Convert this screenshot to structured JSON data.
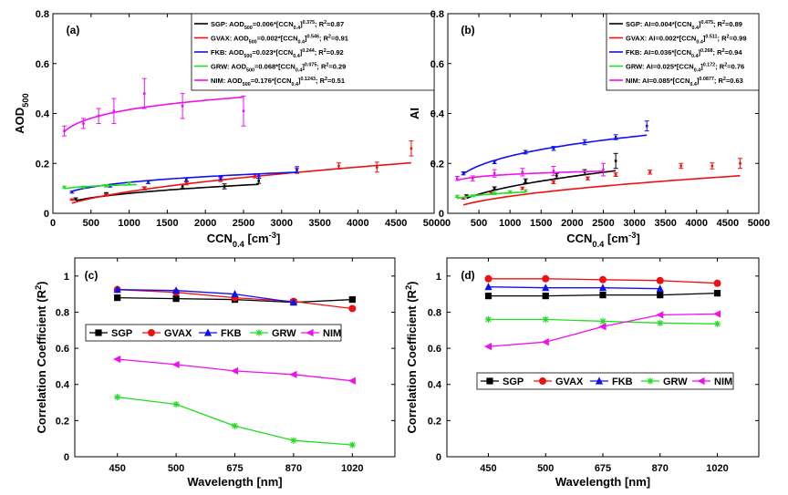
{
  "colors": {
    "SGP": "#000000",
    "GVAX": "#ee1111",
    "FKB": "#1111ee",
    "GRW": "#22dd22",
    "NIM": "#ee11ee"
  },
  "chart_data": [
    {
      "id": "a",
      "type": "scatter",
      "panel_label": "(a)",
      "ylabel": "AOD_500",
      "xlabel": "CCN_0.4 [cm^-3]",
      "xlim": [
        0,
        5000
      ],
      "ylim": [
        0,
        0.8
      ],
      "xticks": [
        0,
        500,
        1000,
        1500,
        2000,
        2500,
        3000,
        3500,
        4000,
        4500,
        5000
      ],
      "yticks": [
        0,
        0.2,
        0.4,
        0.6,
        0.8
      ],
      "ytick_labels": [
        "0",
        "0.2",
        "0.4",
        "0.6",
        "0.8"
      ],
      "legend": [
        "SGP: AOD500=0.006*[CCN0.4]^0.375; R2=0.87",
        "GVAX: AOD500=0.002*[CCN0.4]^0.546; R2=0.91",
        "FKB: AOD500=0.023*[CCN0.4]^0.244; R2=0.92",
        "GRW: AOD500=0.068*[CCN0.4]^0.075; R2=0.29",
        "NIM: AOD500=0.176*[CCN0.4]^0.1243; R2=0.51"
      ],
      "series": [
        {
          "key": "SGP",
          "x": [
            300,
            700,
            1200,
            1700,
            2250,
            2700
          ],
          "y": [
            0.058,
            0.078,
            0.1,
            0.108,
            0.108,
            0.13
          ],
          "err": [
            0.004,
            0.005,
            0.006,
            0.008,
            0.01,
            0.01
          ],
          "fit": {
            "a": 0.006,
            "b": 0.375,
            "x0": 300,
            "x1": 2700
          }
        },
        {
          "key": "GVAX",
          "x": [
            250,
            700,
            1200,
            1750,
            2200,
            2650,
            3200,
            3750,
            4250,
            4700
          ],
          "y": [
            0.055,
            0.075,
            0.1,
            0.12,
            0.135,
            0.15,
            0.17,
            0.19,
            0.185,
            0.26
          ],
          "err": [
            0.003,
            0.004,
            0.005,
            0.006,
            0.008,
            0.008,
            0.01,
            0.012,
            0.02,
            0.03
          ],
          "fit": {
            "a": 0.002,
            "b": 0.546,
            "x0": 250,
            "x1": 4700
          }
        },
        {
          "key": "FKB",
          "x": [
            250,
            750,
            1250,
            1750,
            2200,
            2700,
            3200
          ],
          "y": [
            0.085,
            0.11,
            0.125,
            0.135,
            0.14,
            0.15,
            0.175
          ],
          "err": [
            0.004,
            0.005,
            0.006,
            0.006,
            0.007,
            0.008,
            0.012
          ],
          "fit": {
            "a": 0.023,
            "b": 0.244,
            "x0": 250,
            "x1": 3200
          }
        },
        {
          "key": "GRW",
          "x": [
            150,
            400,
            700,
            1000
          ],
          "y": [
            0.105,
            0.105,
            0.11,
            0.12
          ],
          "err": [
            0.004,
            0.004,
            0.005,
            0.005
          ],
          "fit": {
            "a": 0.068,
            "b": 0.075,
            "x0": 150,
            "x1": 1100
          }
        },
        {
          "key": "NIM",
          "x": [
            150,
            400,
            600,
            800,
            1200,
            1700,
            2500
          ],
          "y": [
            0.33,
            0.36,
            0.39,
            0.41,
            0.48,
            0.43,
            0.41
          ],
          "err": [
            0.02,
            0.02,
            0.03,
            0.05,
            0.06,
            0.05,
            0.06
          ],
          "fit": {
            "a": 0.176,
            "b": 0.1243,
            "x0": 150,
            "x1": 2500
          }
        }
      ]
    },
    {
      "id": "b",
      "type": "scatter",
      "panel_label": "(b)",
      "ylabel": "AI",
      "xlabel": "CCN_0.4 [cm^-3]",
      "xlim": [
        0,
        5000
      ],
      "ylim": [
        0,
        0.8
      ],
      "xticks": [
        0,
        500,
        1000,
        1500,
        2000,
        2500,
        3000,
        3500,
        4000,
        4500,
        5000
      ],
      "yticks": [
        0,
        0.2,
        0.4,
        0.6,
        0.8
      ],
      "ytick_labels": [
        "0",
        "0.2",
        "0.4",
        "0.6",
        "0.8"
      ],
      "legend": [
        "SGP: AI=0.004*[CCN0.4]^0.475; R2=0.89",
        "GVAX: AI=0.002*[CCN0.4]^0.511; R2=0.99",
        "FKB: AI=0.036*[CCN0.4]^0.268; R2=0.94",
        "GRW: AI=0.025*[CCN0.4]^0.172; R2=0.76",
        "NIM: AI=0.085*[CCN0.4]^0.0877; R2=0.63"
      ],
      "series": [
        {
          "key": "SGP",
          "x": [
            300,
            750,
            1250,
            1750,
            2200,
            2700
          ],
          "y": [
            0.07,
            0.1,
            0.13,
            0.15,
            0.165,
            0.21
          ],
          "err": [
            0.004,
            0.006,
            0.008,
            0.01,
            0.01,
            0.03
          ],
          "fit": {
            "a": 0.004,
            "b": 0.475,
            "x0": 300,
            "x1": 2700
          }
        },
        {
          "key": "GVAX",
          "x": [
            250,
            700,
            1200,
            1700,
            2250,
            2700,
            3250,
            3750,
            4250,
            4700
          ],
          "y": [
            0.06,
            0.08,
            0.1,
            0.125,
            0.14,
            0.155,
            0.165,
            0.19,
            0.19,
            0.2
          ],
          "err": [
            0.003,
            0.004,
            0.005,
            0.006,
            0.006,
            0.007,
            0.008,
            0.01,
            0.012,
            0.02
          ],
          "fit": {
            "a": 0.002,
            "b": 0.511,
            "x0": 250,
            "x1": 4700
          }
        },
        {
          "key": "FKB",
          "x": [
            250,
            750,
            1250,
            1700,
            2200,
            2700,
            3200
          ],
          "y": [
            0.16,
            0.205,
            0.245,
            0.26,
            0.285,
            0.305,
            0.35
          ],
          "err": [
            0.006,
            0.006,
            0.007,
            0.008,
            0.01,
            0.01,
            0.02
          ],
          "fit": {
            "a": 0.036,
            "b": 0.268,
            "x0": 250,
            "x1": 3200
          }
        },
        {
          "key": "GRW",
          "x": [
            150,
            400,
            750,
            1000,
            1250
          ],
          "y": [
            0.068,
            0.07,
            0.08,
            0.085,
            0.09
          ],
          "err": [
            0.004,
            0.004,
            0.005,
            0.005,
            0.005
          ],
          "fit": {
            "a": 0.025,
            "b": 0.172,
            "x0": 150,
            "x1": 1250
          }
        },
        {
          "key": "NIM",
          "x": [
            150,
            400,
            750,
            1200,
            1700,
            2500
          ],
          "y": [
            0.14,
            0.14,
            0.16,
            0.165,
            0.17,
            0.175
          ],
          "err": [
            0.008,
            0.01,
            0.015,
            0.015,
            0.018,
            0.025
          ],
          "fit": {
            "a": 0.085,
            "b": 0.0877,
            "x0": 150,
            "x1": 2500
          }
        }
      ]
    },
    {
      "id": "c",
      "type": "line",
      "panel_label": "(c)",
      "ylabel": "Correlation Coefficient (R2)",
      "xlabel": "Wavelength [nm]",
      "categories": [
        "450",
        "500",
        "675",
        "870",
        "1020"
      ],
      "ylim": [
        0,
        1.1
      ],
      "yticks": [
        0,
        0.2,
        0.4,
        0.6,
        0.8,
        1
      ],
      "ytick_labels": [
        "0",
        "0.2",
        "0.4",
        "0.6",
        "0.8",
        "1"
      ],
      "legend": [
        "SGP",
        "GVAX",
        "FKB",
        "GRW",
        "NIM"
      ],
      "series": [
        {
          "key": "SGP",
          "marker": "square",
          "values": [
            0.88,
            0.875,
            0.87,
            0.855,
            0.87
          ]
        },
        {
          "key": "GVAX",
          "marker": "circle",
          "values": [
            0.925,
            0.91,
            0.88,
            0.86,
            0.82
          ]
        },
        {
          "key": "FKB",
          "marker": "triangle",
          "values": [
            0.925,
            0.92,
            0.9,
            0.855,
            null
          ]
        },
        {
          "key": "GRW",
          "marker": "star",
          "values": [
            0.33,
            0.29,
            0.17,
            0.09,
            0.065
          ]
        },
        {
          "key": "NIM",
          "marker": "ltriangle",
          "values": [
            0.54,
            0.51,
            0.475,
            0.455,
            0.42
          ]
        }
      ]
    },
    {
      "id": "d",
      "type": "line",
      "panel_label": "(d)",
      "ylabel": "Correlation Coefficient (R2)",
      "xlabel": "Wavelength [nm]",
      "categories": [
        "450",
        "500",
        "675",
        "870",
        "1020"
      ],
      "ylim": [
        0,
        1.1
      ],
      "yticks": [
        0,
        0.2,
        0.4,
        0.6,
        0.8,
        1
      ],
      "ytick_labels": [
        "0",
        "0.2",
        "0.4",
        "0.6",
        "0.8",
        "1"
      ],
      "legend": [
        "SGP",
        "GVAX",
        "FKB",
        "GRW",
        "NIM"
      ],
      "series": [
        {
          "key": "SGP",
          "marker": "square",
          "values": [
            0.89,
            0.89,
            0.895,
            0.895,
            0.905
          ]
        },
        {
          "key": "GVAX",
          "marker": "circle",
          "values": [
            0.985,
            0.985,
            0.98,
            0.975,
            0.96
          ]
        },
        {
          "key": "FKB",
          "marker": "triangle",
          "values": [
            0.94,
            0.935,
            0.935,
            0.93,
            null
          ]
        },
        {
          "key": "GRW",
          "marker": "star",
          "values": [
            0.76,
            0.76,
            0.75,
            0.74,
            0.735
          ]
        },
        {
          "key": "NIM",
          "marker": "ltriangle",
          "values": [
            0.61,
            0.635,
            0.72,
            0.785,
            0.79
          ]
        }
      ]
    }
  ]
}
